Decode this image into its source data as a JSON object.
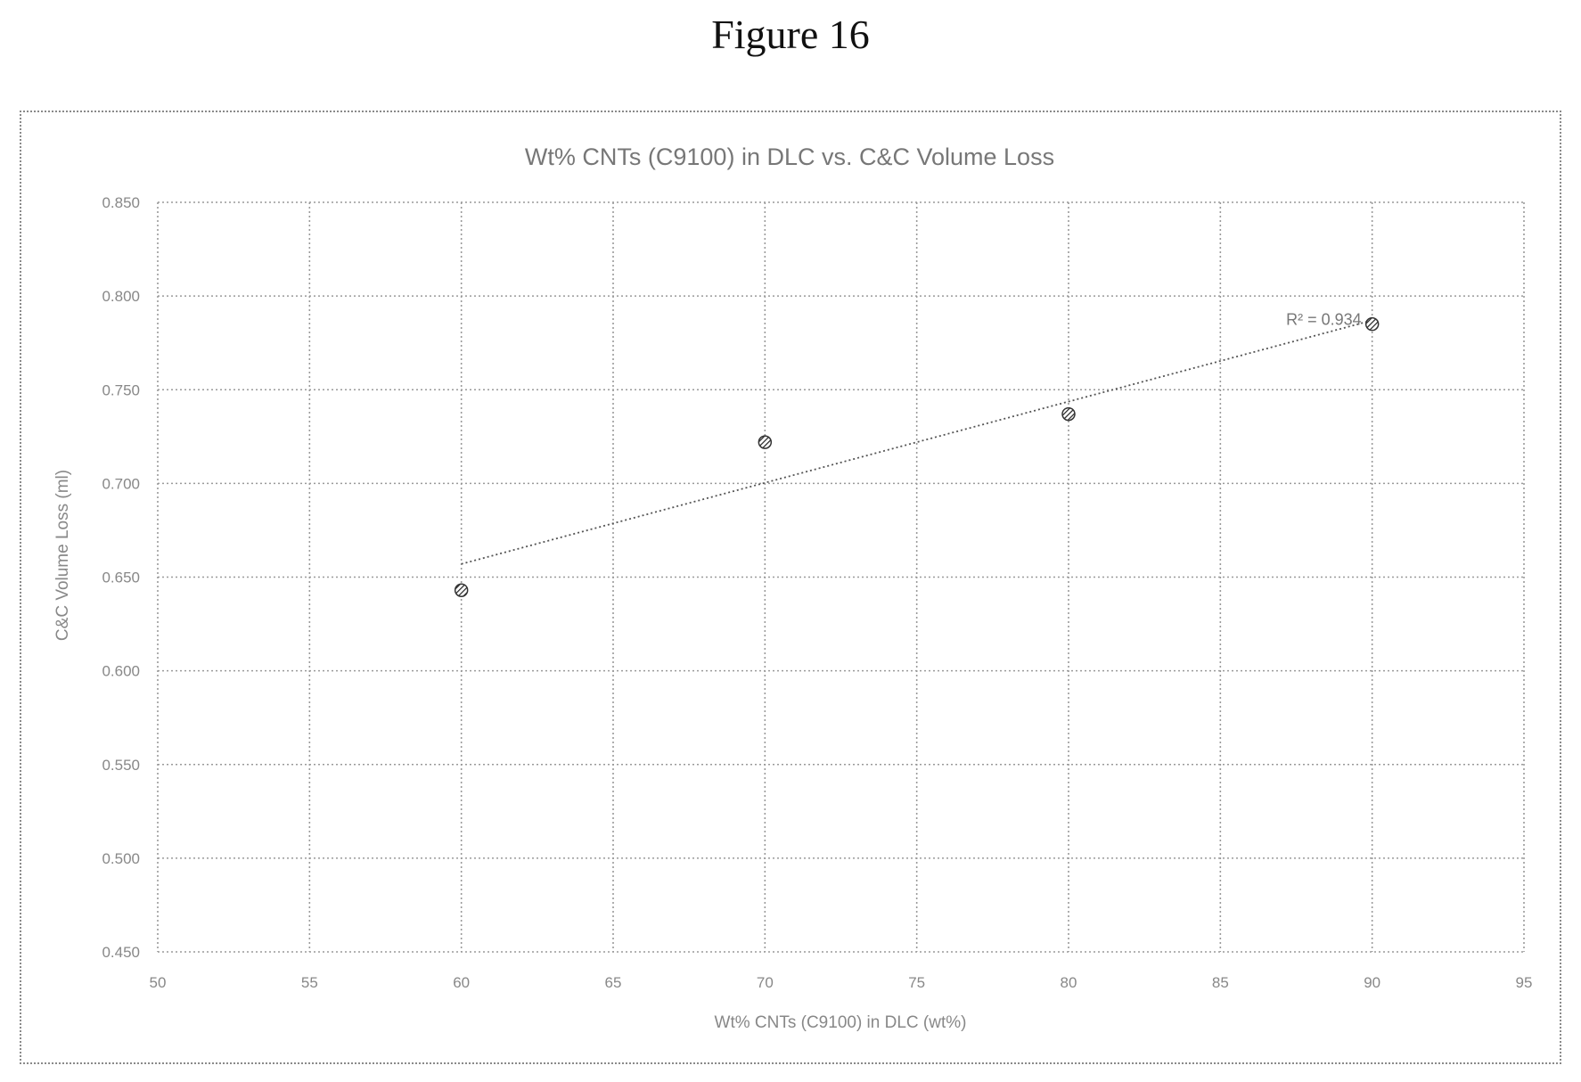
{
  "figure_label": "Figure 16",
  "chart_data": {
    "type": "scatter",
    "title": "Wt% CNTs (C9100) in DLC vs. C&C Volume Loss",
    "xlabel": "Wt% CNTs (C9100) in DLC (wt%)",
    "ylabel": "C&C Volume Loss (ml)",
    "xlim": [
      50,
      95
    ],
    "ylim": [
      0.45,
      0.85
    ],
    "x_ticks": [
      50,
      55,
      60,
      65,
      70,
      75,
      80,
      85,
      90,
      95
    ],
    "x_tick_labels": [
      "50",
      "55",
      "60",
      "65",
      "70",
      "75",
      "80",
      "85",
      "90",
      "95"
    ],
    "y_ticks": [
      0.45,
      0.5,
      0.55,
      0.6,
      0.65,
      0.7,
      0.75,
      0.8,
      0.85
    ],
    "y_tick_labels": [
      "0.450",
      "0.500",
      "0.550",
      "0.600",
      "0.650",
      "0.700",
      "0.750",
      "0.800",
      "0.850"
    ],
    "grid": true,
    "series": [
      {
        "x": [
          60,
          70,
          80,
          90
        ],
        "y": [
          0.643,
          0.722,
          0.737,
          0.785
        ],
        "marker": "hatched-circle",
        "color": "#333333"
      }
    ],
    "trendline": {
      "type": "linear",
      "x": [
        60,
        90
      ],
      "y": [
        0.657,
        0.787
      ],
      "label": "R² = 0.934",
      "color": "#555555"
    }
  }
}
